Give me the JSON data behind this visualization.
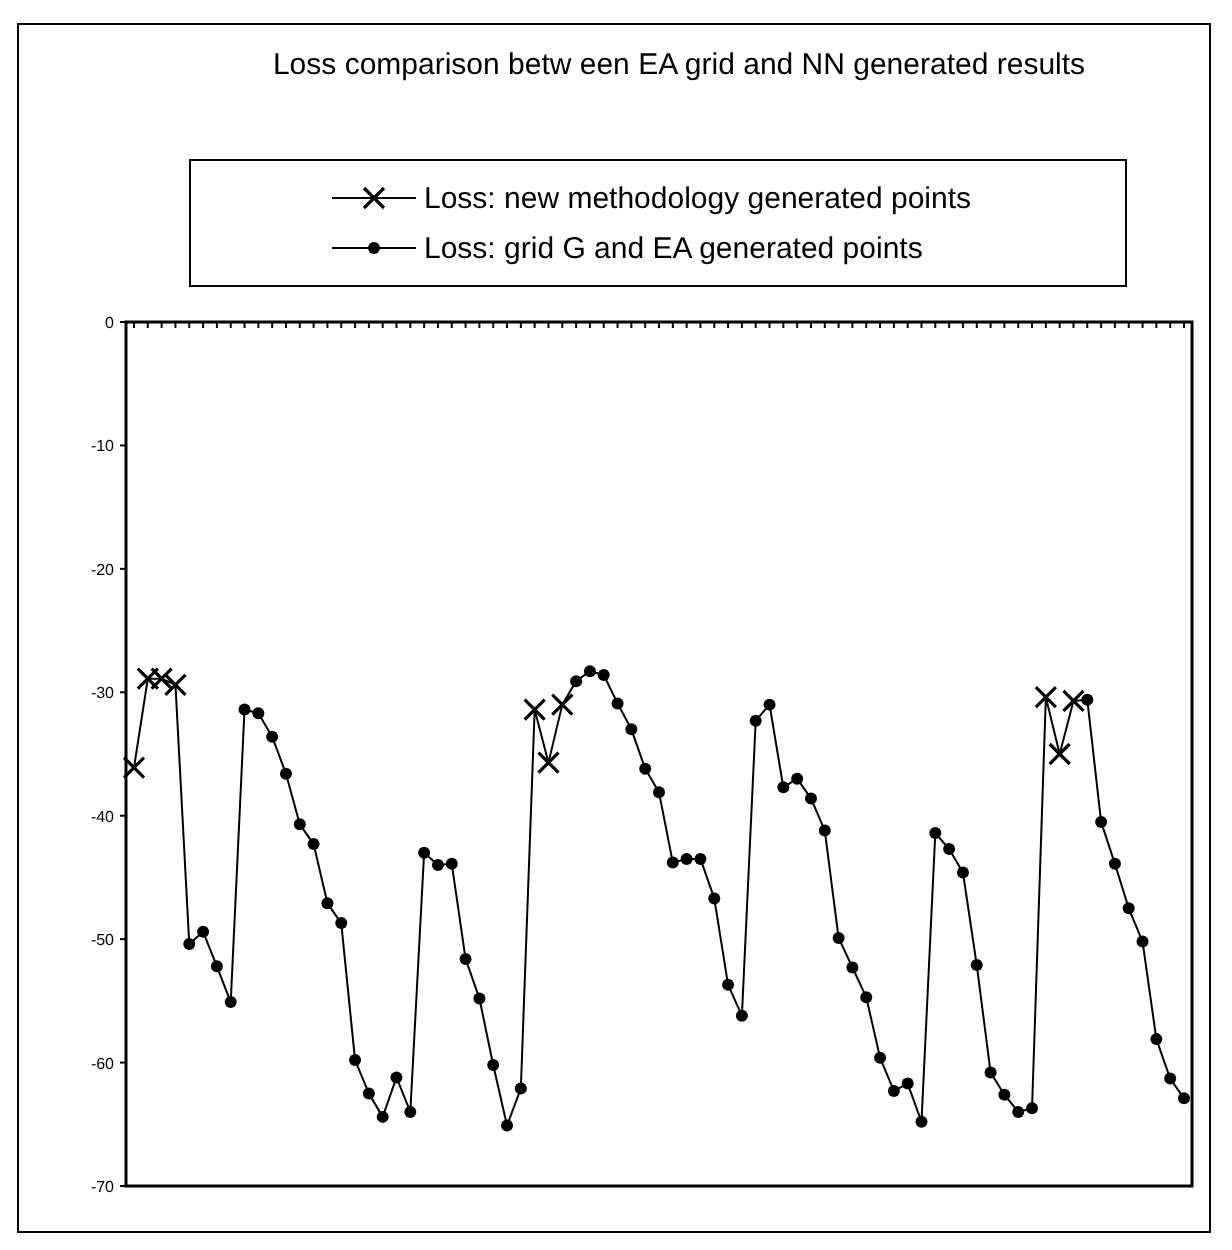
{
  "chart_data": {
    "type": "line",
    "title": "Loss comparison betw een EA grid and NN generated results",
    "categories": [
      null,
      null,
      null,
      null,
      null,
      null,
      null,
      null,
      null,
      null,
      null,
      null,
      null,
      null,
      null,
      null,
      null,
      null,
      null,
      null,
      null,
      null,
      null,
      null,
      null,
      null,
      null,
      null,
      null,
      null,
      null,
      null,
      null,
      null,
      null,
      null,
      null,
      null,
      null,
      null,
      null,
      null,
      null,
      null,
      null,
      null,
      null,
      null,
      null,
      null,
      null,
      null,
      null,
      null,
      null,
      null,
      null,
      null,
      null,
      null,
      null,
      null,
      null,
      null,
      null,
      null,
      null,
      null,
      null,
      null,
      null,
      null,
      null,
      null,
      null,
      null,
      null
    ],
    "series": [
      {
        "color": "#000000",
        "marker": "none",
        "values": [
          -36.1,
          -28.9,
          -28.9,
          -29.4,
          -50.4,
          -49.4,
          -52.2,
          -55.1,
          -31.4,
          -31.7,
          -33.6,
          -36.6,
          -40.7,
          -42.3,
          -47.1,
          -48.7,
          -59.8,
          -62.5,
          -64.4,
          -61.2,
          -64.0,
          -43.0,
          -44.0,
          -43.9,
          -51.6,
          -54.8,
          -60.2,
          -65.1,
          -62.1,
          -31.4,
          -35.7,
          -31.0,
          -29.1,
          -28.3,
          -28.6,
          -30.9,
          -33.0,
          -36.2,
          -38.1,
          -43.8,
          -43.5,
          -43.5,
          -46.7,
          -53.7,
          -56.2,
          -32.3,
          -31.0,
          -37.7,
          -37.0,
          -38.6,
          -41.2,
          -49.9,
          -52.3,
          -54.7,
          -59.6,
          -62.3,
          -61.7,
          -64.8,
          -41.4,
          -42.7,
          -44.6,
          -52.1,
          -60.8,
          -62.6,
          -64.0,
          -63.7,
          -30.4,
          -35.0,
          -30.7,
          -30.6,
          -40.5,
          -43.9,
          -47.5,
          -50.2,
          -58.1,
          -61.3,
          -62.9
        ]
      },
      {
        "type": "scatter",
        "name": "Loss: new methodology generated points",
        "color": "#000000",
        "marker": "cross",
        "values": [
          -36.1,
          -28.9,
          -28.9,
          -29.4,
          null,
          null,
          null,
          null,
          null,
          null,
          null,
          null,
          null,
          null,
          null,
          null,
          null,
          null,
          null,
          null,
          null,
          null,
          null,
          null,
          null,
          null,
          null,
          null,
          null,
          -31.4,
          -35.7,
          -31.0,
          null,
          null,
          null,
          null,
          null,
          null,
          null,
          null,
          null,
          null,
          null,
          null,
          null,
          null,
          null,
          null,
          null,
          null,
          null,
          null,
          null,
          null,
          null,
          null,
          null,
          null,
          null,
          null,
          null,
          null,
          null,
          null,
          null,
          null,
          -30.4,
          -35.0,
          -30.7,
          null,
          null,
          null,
          null,
          null,
          null,
          null,
          null
        ]
      },
      {
        "type": "scatter",
        "name": "Loss: grid G and EA generated points",
        "color": "#000000",
        "marker": "circle",
        "values": [
          null,
          null,
          null,
          null,
          -50.4,
          -49.4,
          -52.2,
          -55.1,
          -31.4,
          -31.7,
          -33.6,
          -36.6,
          -40.7,
          -42.3,
          -47.1,
          -48.7,
          -59.8,
          -62.5,
          -64.4,
          -61.2,
          -64.0,
          -43.0,
          -44.0,
          -43.9,
          -51.6,
          -54.8,
          -60.2,
          -65.1,
          -62.1,
          null,
          null,
          null,
          -29.1,
          -28.3,
          -28.6,
          -30.9,
          -33.0,
          -36.2,
          -38.1,
          -43.8,
          -43.5,
          -43.5,
          -46.7,
          -53.7,
          -56.2,
          -32.3,
          -31.0,
          -37.7,
          -37.0,
          -38.6,
          -41.2,
          -49.9,
          -52.3,
          -54.7,
          -59.6,
          -62.3,
          -61.7,
          -64.8,
          -41.4,
          -42.7,
          -44.6,
          -52.1,
          -60.8,
          -62.6,
          -64.0,
          -63.7,
          null,
          null,
          null,
          -30.6,
          -40.5,
          -43.9,
          -47.5,
          -50.2,
          -58.1,
          -61.3,
          -62.9
        ]
      }
    ],
    "ylim": [
      -70,
      0
    ],
    "yticks": [
      0,
      -10,
      -20,
      -30,
      -40,
      -50,
      -60,
      -70
    ],
    "grid": false,
    "legend": "top",
    "line_style": "solid"
  }
}
